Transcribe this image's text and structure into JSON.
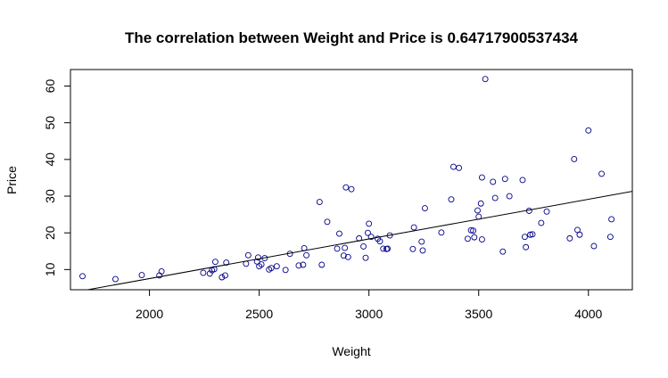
{
  "chart_data": {
    "type": "scatter",
    "title": "The correlation between Weight  and  Price  is  0.64717900537434",
    "xlabel": "Weight",
    "ylabel": "Price",
    "xlim": [
      1640,
      4200
    ],
    "ylim": [
      4.5,
      64.5
    ],
    "xticks": [
      2000,
      2500,
      3000,
      3500,
      4000
    ],
    "yticks": [
      10,
      20,
      30,
      40,
      50,
      60
    ],
    "point_color": "#00008b",
    "line_color": "#000000",
    "grid": false,
    "legend": "none",
    "fit_line": {
      "x": [
        1700,
        4200
      ],
      "y": [
        4.3,
        31.3
      ]
    },
    "points": [
      [
        1695,
        8.2
      ],
      [
        1845,
        7.4
      ],
      [
        1965,
        8.5
      ],
      [
        2045,
        8.4
      ],
      [
        2055,
        9.5
      ],
      [
        2245,
        9.1
      ],
      [
        2275,
        8.9
      ],
      [
        2285,
        9.8
      ],
      [
        2295,
        10.1
      ],
      [
        2300,
        12.1
      ],
      [
        2330,
        7.9
      ],
      [
        2345,
        8.4
      ],
      [
        2350,
        11.9
      ],
      [
        2440,
        11.6
      ],
      [
        2450,
        13.9
      ],
      [
        2490,
        12.2
      ],
      [
        2495,
        13.3
      ],
      [
        2500,
        10.9
      ],
      [
        2510,
        11.4
      ],
      [
        2525,
        13.1
      ],
      [
        2545,
        10.0
      ],
      [
        2555,
        10.4
      ],
      [
        2580,
        10.9
      ],
      [
        2620,
        9.9
      ],
      [
        2640,
        14.3
      ],
      [
        2680,
        11.1
      ],
      [
        2700,
        11.3
      ],
      [
        2705,
        15.8
      ],
      [
        2715,
        13.9
      ],
      [
        2775,
        28.4
      ],
      [
        2785,
        11.3
      ],
      [
        2810,
        23.0
      ],
      [
        2855,
        15.7
      ],
      [
        2865,
        19.8
      ],
      [
        2885,
        13.8
      ],
      [
        2890,
        15.9
      ],
      [
        2895,
        32.4
      ],
      [
        2905,
        13.4
      ],
      [
        2920,
        31.9
      ],
      [
        2955,
        18.5
      ],
      [
        2975,
        16.3
      ],
      [
        2985,
        13.2
      ],
      [
        2995,
        20.0
      ],
      [
        3000,
        22.5
      ],
      [
        3010,
        18.9
      ],
      [
        3040,
        18.4
      ],
      [
        3050,
        17.7
      ],
      [
        3065,
        15.7
      ],
      [
        3080,
        15.6
      ],
      [
        3085,
        15.7
      ],
      [
        3095,
        19.3
      ],
      [
        3200,
        15.6
      ],
      [
        3205,
        21.5
      ],
      [
        3240,
        17.6
      ],
      [
        3245,
        15.2
      ],
      [
        3255,
        26.7
      ],
      [
        3330,
        20.1
      ],
      [
        3375,
        29.1
      ],
      [
        3385,
        38.0
      ],
      [
        3410,
        37.7
      ],
      [
        3450,
        18.4
      ],
      [
        3465,
        20.7
      ],
      [
        3475,
        20.6
      ],
      [
        3480,
        18.8
      ],
      [
        3495,
        26.1
      ],
      [
        3500,
        24.4
      ],
      [
        3510,
        28.0
      ],
      [
        3515,
        35.1
      ],
      [
        3515,
        18.2
      ],
      [
        3530,
        61.9
      ],
      [
        3565,
        33.9
      ],
      [
        3575,
        29.5
      ],
      [
        3610,
        14.9
      ],
      [
        3620,
        34.7
      ],
      [
        3640,
        30.0
      ],
      [
        3700,
        34.4
      ],
      [
        3710,
        18.9
      ],
      [
        3715,
        16.1
      ],
      [
        3730,
        26.0
      ],
      [
        3735,
        19.5
      ],
      [
        3745,
        19.6
      ],
      [
        3785,
        22.7
      ],
      [
        3810,
        25.8
      ],
      [
        3915,
        18.5
      ],
      [
        3935,
        40.1
      ],
      [
        3950,
        20.8
      ],
      [
        3960,
        19.5
      ],
      [
        4000,
        47.9
      ],
      [
        4025,
        16.4
      ],
      [
        4060,
        36.1
      ],
      [
        4100,
        18.9
      ],
      [
        4105,
        23.7
      ]
    ]
  }
}
